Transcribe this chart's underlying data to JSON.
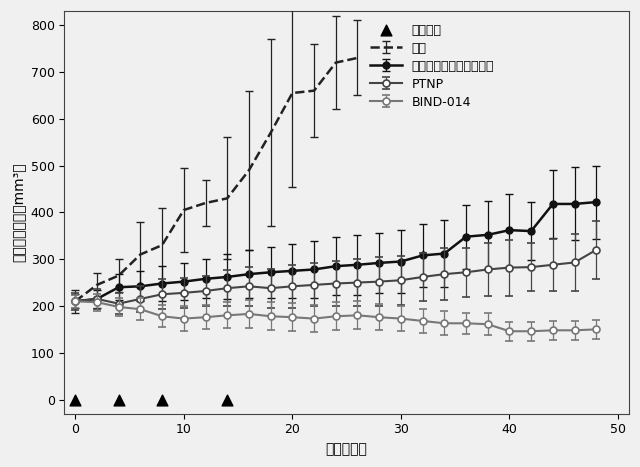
{
  "title": "",
  "xlabel": "時間（日）",
  "ylabel": "平均腫瘾容積（mm³）",
  "xlim": [
    -1,
    51
  ],
  "ylim": [
    -30,
    830
  ],
  "xticks": [
    0,
    10,
    20,
    30,
    40,
    50
  ],
  "yticks": [
    0,
    100,
    200,
    300,
    400,
    500,
    600,
    700,
    800
  ],
  "background_color": "#f0f0f0",
  "taisho_x": [
    0,
    2,
    4,
    6,
    8,
    10,
    12,
    14,
    16,
    18,
    20,
    22,
    24,
    26
  ],
  "taisho_y": [
    210,
    245,
    265,
    310,
    330,
    405,
    420,
    430,
    490,
    570,
    655,
    660,
    720,
    730
  ],
  "taisho_yerr_lo": [
    25,
    25,
    35,
    70,
    80,
    90,
    50,
    130,
    170,
    200,
    200,
    100,
    100,
    80
  ],
  "taisho_yerr_hi": [
    25,
    25,
    35,
    70,
    80,
    90,
    50,
    130,
    170,
    200,
    200,
    100,
    100,
    80
  ],
  "docetaxel_x": [
    0,
    2,
    4,
    6,
    8,
    10,
    12,
    14,
    16,
    18,
    20,
    22,
    24,
    26,
    28,
    30,
    32,
    34,
    36,
    38,
    40,
    42,
    44,
    46,
    48
  ],
  "docetaxel_y": [
    210,
    215,
    240,
    242,
    248,
    252,
    258,
    262,
    268,
    272,
    275,
    278,
    285,
    288,
    292,
    295,
    308,
    312,
    348,
    352,
    362,
    360,
    418,
    418,
    422
  ],
  "docetaxel_yerr": [
    15,
    20,
    28,
    32,
    38,
    40,
    42,
    48,
    52,
    54,
    58,
    60,
    62,
    64,
    64,
    68,
    68,
    72,
    68,
    72,
    78,
    62,
    72,
    78,
    78
  ],
  "ptnp_x": [
    0,
    2,
    4,
    6,
    8,
    10,
    12,
    14,
    16,
    18,
    20,
    22,
    24,
    26,
    28,
    30,
    32,
    34,
    36,
    38,
    40,
    42,
    44,
    46,
    48
  ],
  "ptnp_y": [
    210,
    215,
    205,
    215,
    225,
    228,
    232,
    238,
    242,
    238,
    242,
    245,
    248,
    250,
    252,
    255,
    262,
    268,
    272,
    278,
    282,
    283,
    288,
    293,
    320
  ],
  "ptnp_yerr": [
    18,
    22,
    22,
    28,
    32,
    32,
    33,
    38,
    42,
    42,
    46,
    46,
    48,
    50,
    52,
    52,
    52,
    56,
    52,
    56,
    60,
    52,
    56,
    60,
    62
  ],
  "bind014_x": [
    0,
    2,
    4,
    6,
    8,
    10,
    12,
    14,
    16,
    18,
    20,
    22,
    24,
    26,
    28,
    30,
    32,
    34,
    36,
    38,
    40,
    42,
    44,
    46,
    48
  ],
  "bind014_y": [
    210,
    208,
    198,
    193,
    178,
    173,
    176,
    180,
    183,
    178,
    176,
    173,
    178,
    180,
    176,
    173,
    168,
    163,
    163,
    161,
    146,
    146,
    148,
    148,
    150
  ],
  "bind014_yerr": [
    14,
    18,
    20,
    23,
    23,
    26,
    26,
    28,
    30,
    30,
    30,
    28,
    30,
    30,
    28,
    26,
    26,
    26,
    23,
    23,
    20,
    20,
    20,
    20,
    20
  ],
  "dosing_days": [
    0,
    4,
    8,
    14
  ],
  "legend_labels": [
    "対照",
    "ドセタキセル（従来品）",
    "PTNP",
    "BIND-014",
    "投与日数"
  ],
  "line_color_taisho": "#222222",
  "line_color_docetaxel": "#111111",
  "line_color_ptnp": "#444444",
  "line_color_bind014": "#777777",
  "fontsize_label": 10,
  "fontsize_tick": 9,
  "fontsize_legend": 9
}
